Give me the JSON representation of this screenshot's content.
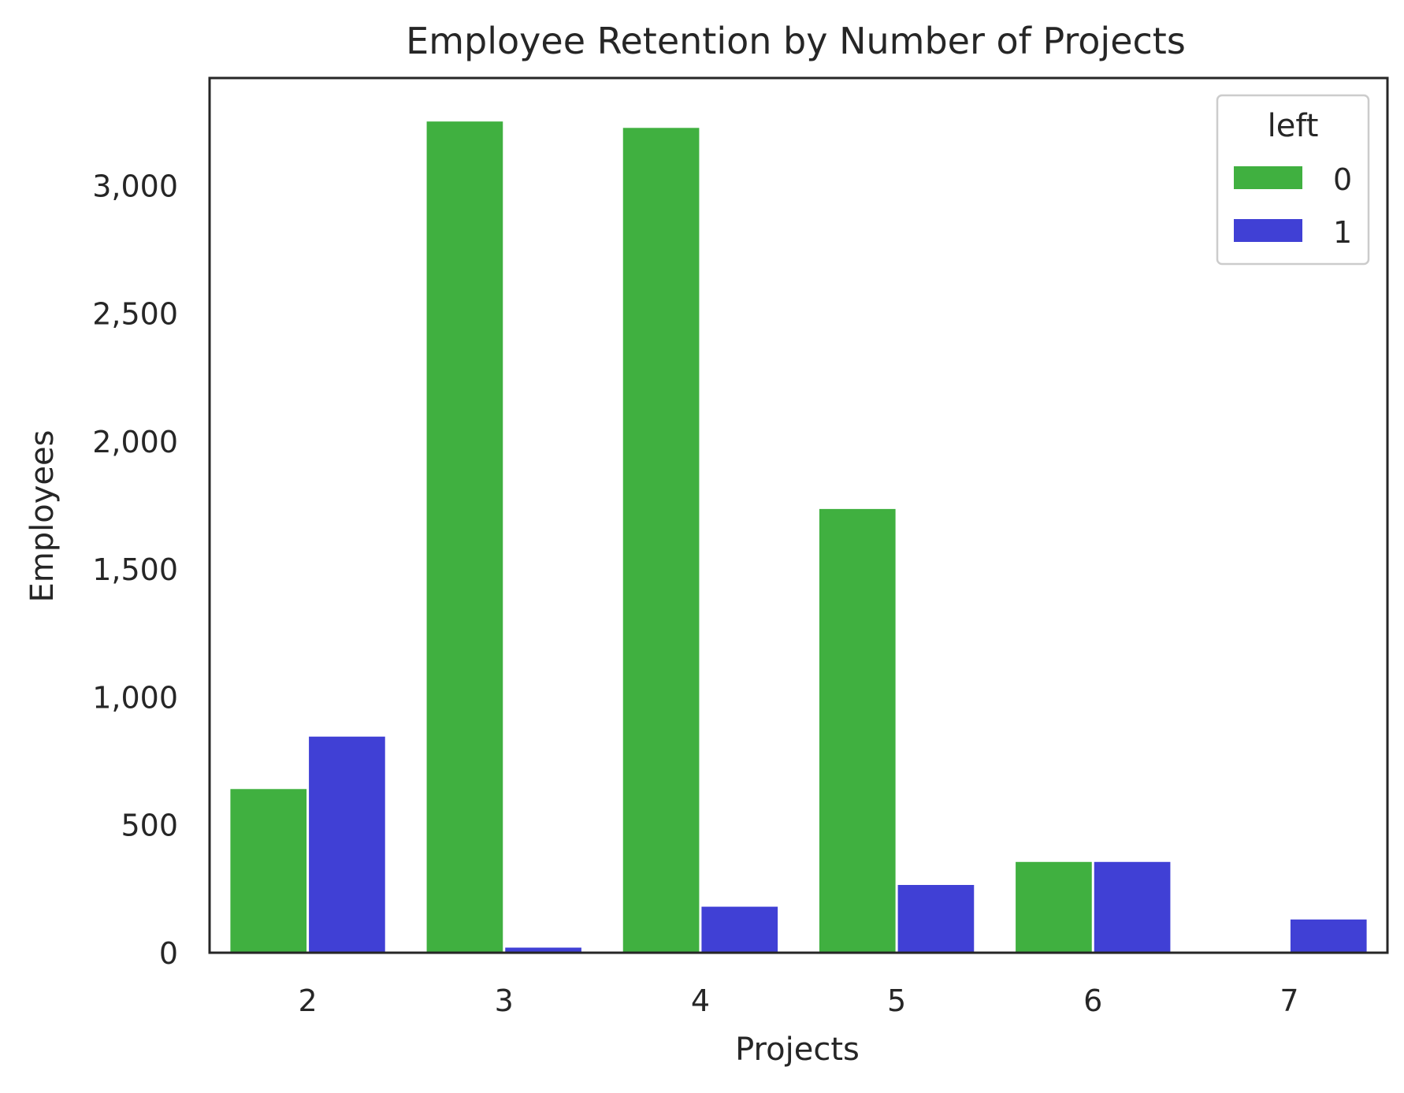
{
  "chart_data": {
    "type": "bar",
    "title": "Employee Retention by Number of Projects",
    "xlabel": "Projects",
    "ylabel": "Employees",
    "categories": [
      "2",
      "3",
      "4",
      "5",
      "6",
      "7"
    ],
    "series": [
      {
        "name": "0",
        "color": "#40b040",
        "values": [
          640,
          3250,
          3225,
          1735,
          355,
          0
        ]
      },
      {
        "name": "1",
        "color": "#4040d5",
        "values": [
          845,
          20,
          180,
          265,
          355,
          130
        ]
      }
    ],
    "ylim": [
      0,
      3420
    ],
    "yticks": [
      0,
      500,
      1000,
      1500,
      2000,
      2500,
      3000
    ],
    "ytick_labels": [
      "0",
      "500",
      "1,000",
      "1,500",
      "2,000",
      "2,500",
      "3,000"
    ],
    "legend": {
      "title": "left",
      "placement": "top-right"
    },
    "grid": false
  }
}
